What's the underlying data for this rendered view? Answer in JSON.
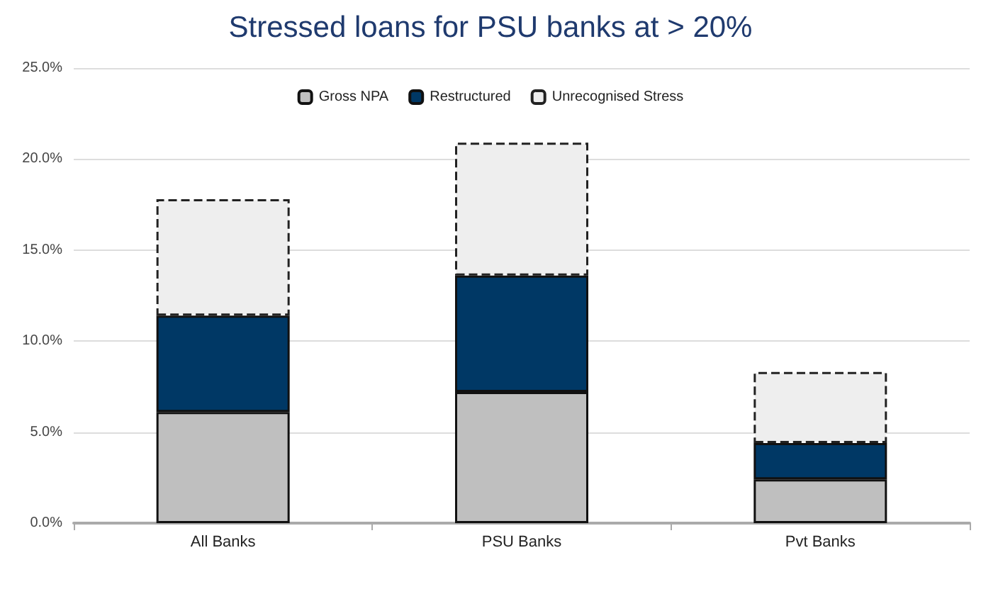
{
  "chart_data": {
    "type": "bar",
    "title": "Stressed loans for PSU banks at > 20%",
    "categories": [
      "All Banks",
      "PSU Banks",
      "Pvt Banks"
    ],
    "stacked": true,
    "series": [
      {
        "name": "Gross NPA",
        "color": "#bfbfbf",
        "values": [
          6.1,
          7.2,
          2.4
        ]
      },
      {
        "name": "Restructured",
        "color": "#003865",
        "values": [
          5.3,
          6.4,
          2.0
        ]
      },
      {
        "name": "Unrecognised Stress",
        "color": "#eeeeee",
        "values": [
          6.4,
          7.3,
          3.9
        ],
        "line_style": "dashed"
      }
    ],
    "ylim": [
      0,
      25
    ],
    "yticks": [
      {
        "value": 0,
        "label": "0.0%"
      },
      {
        "value": 5,
        "label": "5.0%"
      },
      {
        "value": 10,
        "label": "10.0%"
      },
      {
        "value": 15,
        "label": "15.0%"
      },
      {
        "value": 20,
        "label": "20.0%"
      },
      {
        "value": 25,
        "label": "25.0%"
      }
    ],
    "grid": "y",
    "legend": "top"
  }
}
